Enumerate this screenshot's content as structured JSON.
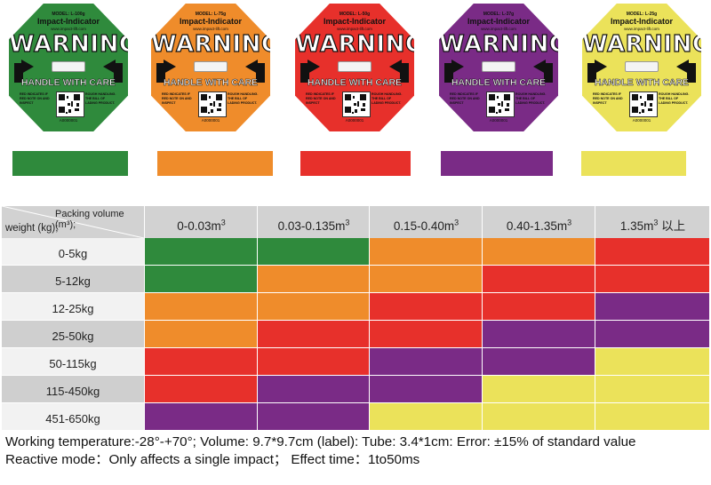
{
  "colors": {
    "green": "#2f8a3c",
    "orange": "#ef8c2b",
    "red": "#e7302b",
    "purple": "#7a2b86",
    "yellow": "#ebe25a"
  },
  "labels": [
    {
      "model": "MODEL: L-100g",
      "color": "green"
    },
    {
      "model": "MODEL: L-75g",
      "color": "orange"
    },
    {
      "model": "MODEL: L-50g",
      "color": "red"
    },
    {
      "model": "MODEL: L-37g",
      "color": "purple"
    },
    {
      "model": "MODEL: L-25g",
      "color": "yellow"
    }
  ],
  "label_text": {
    "impact": "Impact-Indicator",
    "website": "www.impact-lift.com",
    "warning": "WARNING",
    "handle": "HANDLE WITH CARE",
    "note_left": "RED INDICATES IF RED NOTE ON AND INSPECT",
    "note_right": "ROUGH HANDLING. THE BILL OF LADING PRODUCT.",
    "serial": "A0000001"
  },
  "table": {
    "corner_top": "Packing volume (m³);",
    "corner_bottom": "weight (kg);",
    "columns": [
      {
        "label": "0-0.03m",
        "sup": "3",
        "suffix": ""
      },
      {
        "label": "0.03-0.135m",
        "sup": "3",
        "suffix": ""
      },
      {
        "label": "0.15-0.40m",
        "sup": "3",
        "suffix": ""
      },
      {
        "label": "0.40-1.35m",
        "sup": "3",
        "suffix": ""
      },
      {
        "label": "1.35m",
        "sup": "3",
        "suffix": " 以上"
      }
    ],
    "rows": [
      {
        "weight": "0-5kg",
        "cells": [
          "green",
          "green",
          "orange",
          "orange",
          "red"
        ]
      },
      {
        "weight": "5-12kg",
        "cells": [
          "green",
          "orange",
          "orange",
          "red",
          "red"
        ]
      },
      {
        "weight": "12-25kg",
        "cells": [
          "orange",
          "orange",
          "red",
          "red",
          "purple"
        ]
      },
      {
        "weight": "25-50kg",
        "cells": [
          "orange",
          "red",
          "red",
          "purple",
          "purple"
        ]
      },
      {
        "weight": "50-115kg",
        "cells": [
          "red",
          "red",
          "purple",
          "purple",
          "yellow"
        ]
      },
      {
        "weight": "115-450kg",
        "cells": [
          "red",
          "purple",
          "purple",
          "yellow",
          "yellow"
        ]
      },
      {
        "weight": "451-650kg",
        "cells": [
          "purple",
          "purple",
          "yellow",
          "yellow",
          "yellow"
        ]
      }
    ]
  },
  "footer": {
    "line1": "Working temperature:-28°-+70°; Volume: 9.7*9.7cm (label): Tube: 3.4*1cm:  Error: ±15% of standard value",
    "line2": "Reactive mode：Only affects a single impact；  Effect time：1to50ms"
  }
}
